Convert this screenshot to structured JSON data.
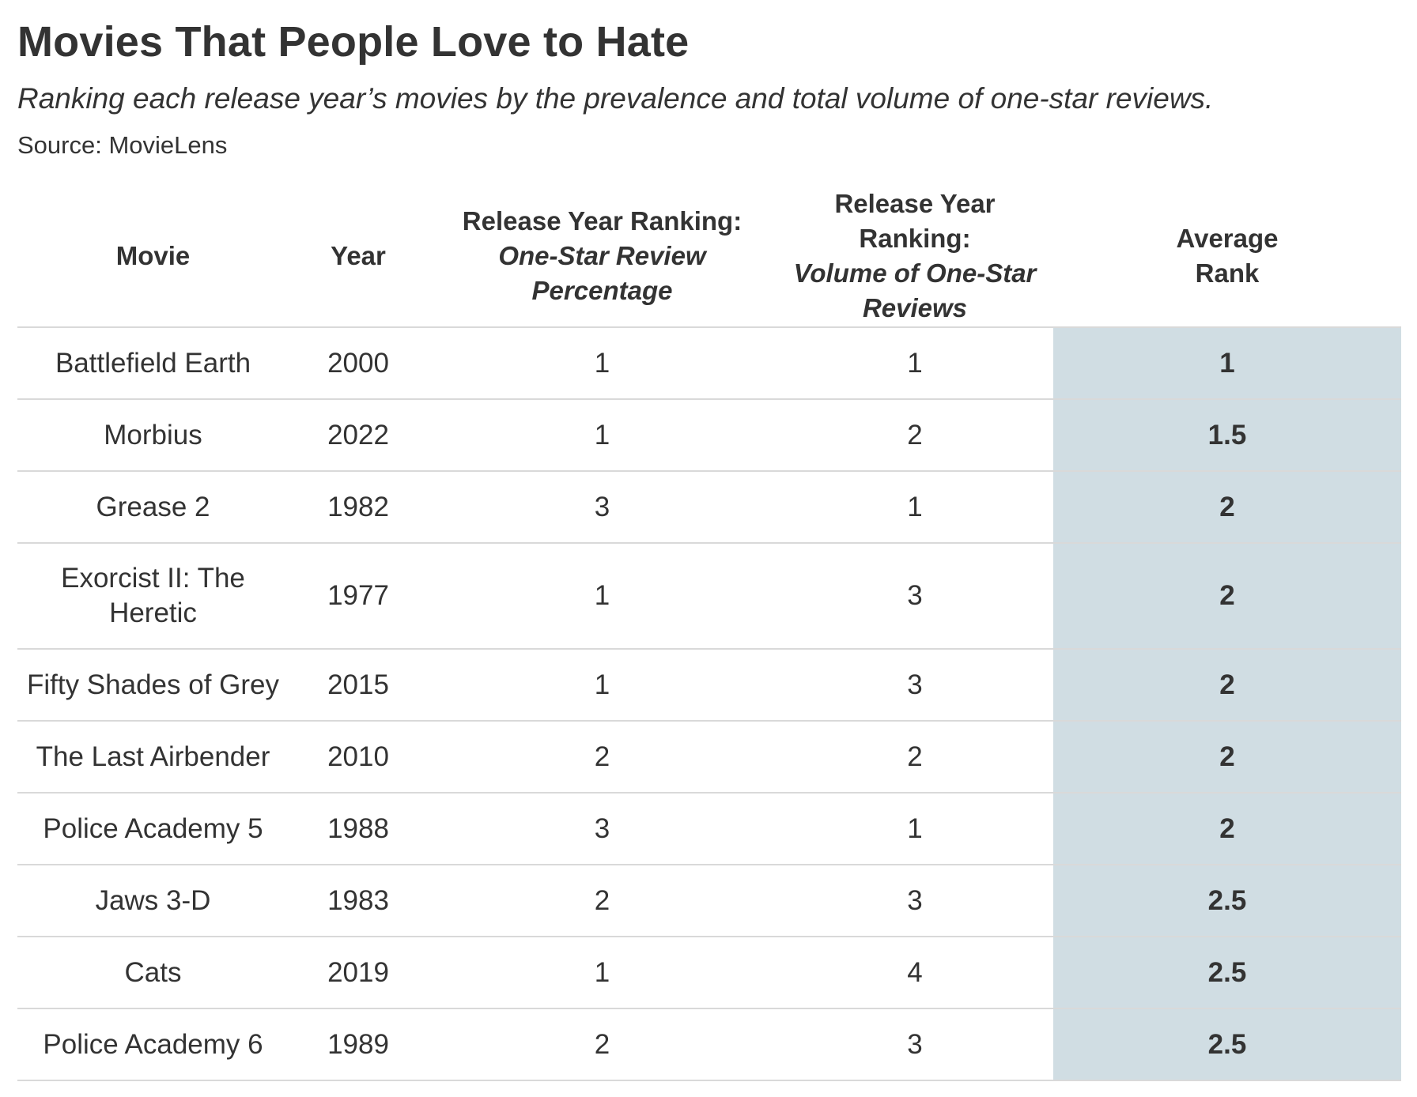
{
  "title": "Movies That People Love to Hate",
  "subtitle": "Ranking each release year’s movies by the prevalence and total volume of one-star reviews.",
  "source": "Source: MovieLens",
  "colors": {
    "highlight_column": "#d0dde3",
    "text": "#333333",
    "rule": "#d9d9d9"
  },
  "chart_data": {
    "type": "table",
    "columns": [
      {
        "line1": "Movie",
        "line2": ""
      },
      {
        "line1": "Year",
        "line2": ""
      },
      {
        "line1": "Release Year Ranking:",
        "line2": "One-Star Review Percentage"
      },
      {
        "line1": "Release Year Ranking:",
        "line2": "Volume of One-Star Reviews"
      },
      {
        "line1": "Average Rank",
        "line2": ""
      }
    ],
    "rows": [
      {
        "movie": "Battlefield Earth",
        "year": "2000",
        "pct_rank": "1",
        "vol_rank": "1",
        "avg_rank": "1"
      },
      {
        "movie": "Morbius",
        "year": "2022",
        "pct_rank": "1",
        "vol_rank": "2",
        "avg_rank": "1.5"
      },
      {
        "movie": "Grease 2",
        "year": "1982",
        "pct_rank": "3",
        "vol_rank": "1",
        "avg_rank": "2"
      },
      {
        "movie": "Exorcist II: The Heretic",
        "year": "1977",
        "pct_rank": "1",
        "vol_rank": "3",
        "avg_rank": "2"
      },
      {
        "movie": "Fifty Shades of Grey",
        "year": "2015",
        "pct_rank": "1",
        "vol_rank": "3",
        "avg_rank": "2"
      },
      {
        "movie": "The Last Airbender",
        "year": "2010",
        "pct_rank": "2",
        "vol_rank": "2",
        "avg_rank": "2"
      },
      {
        "movie": "Police Academy 5",
        "year": "1988",
        "pct_rank": "3",
        "vol_rank": "1",
        "avg_rank": "2"
      },
      {
        "movie": "Jaws 3-D",
        "year": "1983",
        "pct_rank": "2",
        "vol_rank": "3",
        "avg_rank": "2.5"
      },
      {
        "movie": "Cats",
        "year": "2019",
        "pct_rank": "1",
        "vol_rank": "4",
        "avg_rank": "2.5"
      },
      {
        "movie": "Police Academy 6",
        "year": "1989",
        "pct_rank": "2",
        "vol_rank": "3",
        "avg_rank": "2.5"
      }
    ]
  }
}
